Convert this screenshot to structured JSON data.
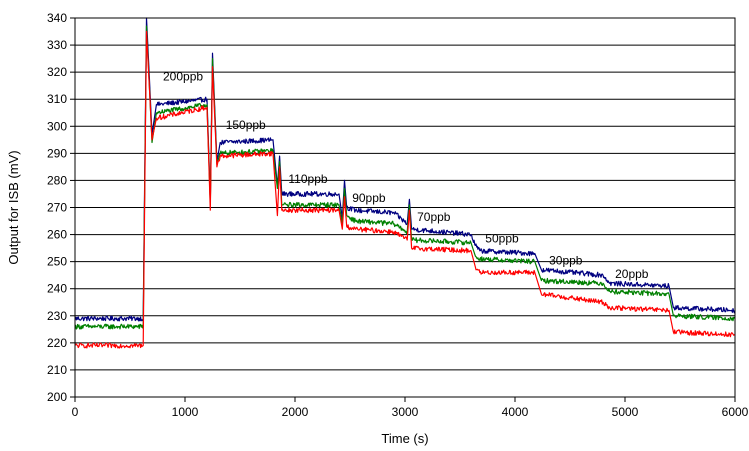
{
  "chart_data": {
    "type": "line",
    "title": "",
    "xlabel": "Time (s)",
    "ylabel": "Output for ISB (mV)",
    "xlim": [
      0,
      6000
    ],
    "ylim": [
      200,
      340
    ],
    "xticks": [
      0,
      1000,
      2000,
      3000,
      4000,
      5000,
      6000
    ],
    "yticks": [
      200,
      210,
      220,
      230,
      240,
      250,
      260,
      270,
      280,
      290,
      300,
      310,
      320,
      330,
      340
    ],
    "grid": "horizontal",
    "legend": "none",
    "series": [
      {
        "color": "#000080",
        "points": [
          [
            0,
            229
          ],
          [
            620,
            229
          ],
          [
            650,
            340
          ],
          [
            700,
            297
          ],
          [
            740,
            308
          ],
          [
            1200,
            310
          ],
          [
            1230,
            272
          ],
          [
            1250,
            327
          ],
          [
            1290,
            287
          ],
          [
            1320,
            294
          ],
          [
            1800,
            295
          ],
          [
            1840,
            278
          ],
          [
            1860,
            289
          ],
          [
            1880,
            275
          ],
          [
            2400,
            275
          ],
          [
            2430,
            266
          ],
          [
            2450,
            280
          ],
          [
            2470,
            270
          ],
          [
            2550,
            269
          ],
          [
            2900,
            268
          ],
          [
            3020,
            264
          ],
          [
            3040,
            273
          ],
          [
            3060,
            262
          ],
          [
            3600,
            260
          ],
          [
            3640,
            256
          ],
          [
            3680,
            254
          ],
          [
            4180,
            253
          ],
          [
            4240,
            247
          ],
          [
            4800,
            245
          ],
          [
            4860,
            242
          ],
          [
            5400,
            241
          ],
          [
            5440,
            233
          ],
          [
            6000,
            232
          ]
        ]
      },
      {
        "color": "#008000",
        "points": [
          [
            0,
            226
          ],
          [
            620,
            226
          ],
          [
            650,
            337
          ],
          [
            700,
            294
          ],
          [
            740,
            305
          ],
          [
            1200,
            308
          ],
          [
            1230,
            271
          ],
          [
            1250,
            325
          ],
          [
            1290,
            286
          ],
          [
            1320,
            290
          ],
          [
            1800,
            291
          ],
          [
            1840,
            277
          ],
          [
            1860,
            287
          ],
          [
            1880,
            271
          ],
          [
            2400,
            271
          ],
          [
            2430,
            264
          ],
          [
            2450,
            277
          ],
          [
            2470,
            267
          ],
          [
            2550,
            265
          ],
          [
            2900,
            264
          ],
          [
            3020,
            261
          ],
          [
            3040,
            271
          ],
          [
            3060,
            258
          ],
          [
            3600,
            257
          ],
          [
            3640,
            252
          ],
          [
            3680,
            251
          ],
          [
            4180,
            250
          ],
          [
            4240,
            243
          ],
          [
            4800,
            242
          ],
          [
            4860,
            239
          ],
          [
            5400,
            238
          ],
          [
            5440,
            230
          ],
          [
            6000,
            229
          ]
        ]
      },
      {
        "color": "#ff0000",
        "points": [
          [
            0,
            219
          ],
          [
            620,
            219
          ],
          [
            650,
            335
          ],
          [
            700,
            295
          ],
          [
            740,
            303
          ],
          [
            1200,
            307
          ],
          [
            1230,
            269
          ],
          [
            1250,
            322
          ],
          [
            1290,
            285
          ],
          [
            1320,
            289
          ],
          [
            1800,
            290
          ],
          [
            1840,
            267
          ],
          [
            1860,
            285
          ],
          [
            1880,
            269
          ],
          [
            2400,
            269
          ],
          [
            2430,
            262
          ],
          [
            2450,
            274
          ],
          [
            2470,
            263
          ],
          [
            2550,
            262
          ],
          [
            2900,
            261
          ],
          [
            3020,
            258
          ],
          [
            3040,
            269
          ],
          [
            3060,
            255
          ],
          [
            3600,
            254
          ],
          [
            3640,
            248
          ],
          [
            3680,
            246
          ],
          [
            4180,
            246
          ],
          [
            4240,
            238
          ],
          [
            4800,
            235
          ],
          [
            4860,
            233
          ],
          [
            5400,
            232
          ],
          [
            5440,
            224
          ],
          [
            6000,
            223
          ]
        ]
      }
    ],
    "annotations": [
      {
        "text": "200ppb",
        "x": 800,
        "y": 317
      },
      {
        "text": "150ppb",
        "x": 1370,
        "y": 299
      },
      {
        "text": "110ppb",
        "x": 1940,
        "y": 279
      },
      {
        "text": "90ppb",
        "x": 2520,
        "y": 272
      },
      {
        "text": "70ppb",
        "x": 3110,
        "y": 265
      },
      {
        "text": "50ppb",
        "x": 3730,
        "y": 257
      },
      {
        "text": "30ppb",
        "x": 4310,
        "y": 249
      },
      {
        "text": "20ppb",
        "x": 4910,
        "y": 244
      }
    ]
  }
}
